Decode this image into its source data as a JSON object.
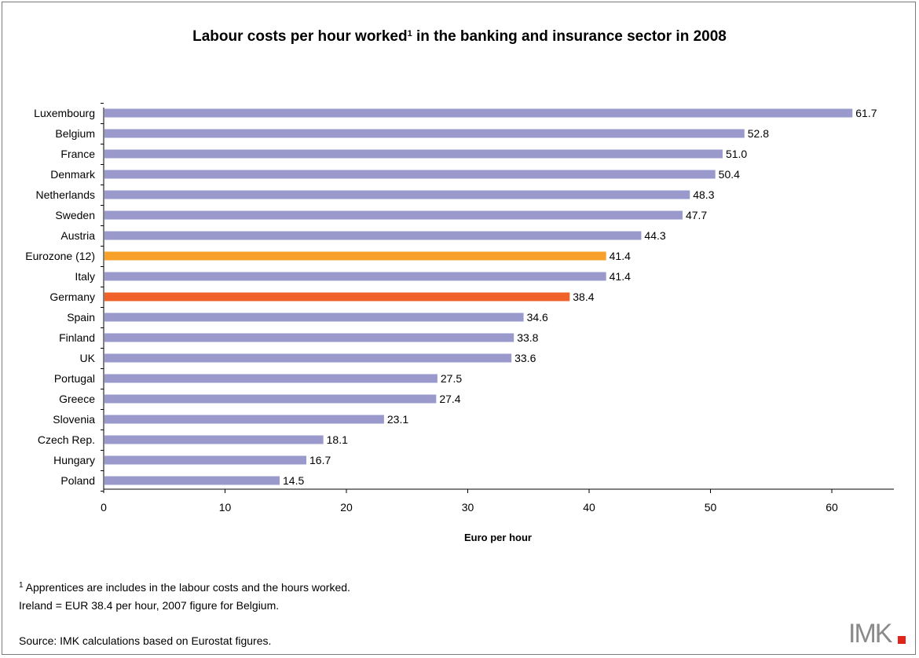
{
  "chart_data": {
    "type": "bar",
    "orientation": "horizontal",
    "title": "Labour costs per hour worked",
    "title_sup": "1",
    "title_rest": " in the banking and insurance sector in 2008",
    "xlabel": "Euro per hour",
    "ylabel": "",
    "xlim": [
      0,
      65
    ],
    "x_ticks": [
      0,
      10,
      20,
      30,
      40,
      50,
      60
    ],
    "grid": false,
    "legend": "none",
    "categories": [
      "Luxembourg",
      "Belgium",
      "France",
      "Denmark",
      "Netherlands",
      "Sweden",
      "Austria",
      "Eurozone (12)",
      "Italy",
      "Germany",
      "Spain",
      "Finland",
      "UK",
      "Portugal",
      "Greece",
      "Slovenia",
      "Czech Rep.",
      "Hungary",
      "Poland"
    ],
    "values": [
      61.7,
      52.8,
      51.0,
      50.4,
      48.3,
      47.7,
      44.3,
      41.4,
      41.4,
      38.4,
      34.6,
      33.8,
      33.6,
      27.5,
      27.4,
      23.1,
      18.1,
      16.7,
      14.5
    ],
    "value_labels": [
      "61.7",
      "52.8",
      "51.0",
      "50.4",
      "48.3",
      "47.7",
      "44.3",
      "41.4",
      "41.4",
      "38.4",
      "34.6",
      "33.8",
      "33.6",
      "27.5",
      "27.4",
      "23.1",
      "18.1",
      "16.7",
      "14.5"
    ],
    "colors": {
      "default": "#9999cc",
      "highlights": {
        "Eurozone (12)": "#f7a12a",
        "Germany": "#f0622a"
      }
    }
  },
  "footnotes": {
    "note_sup": "1",
    "note_line1": " Apprentices are includes in the labour costs and the hours worked.",
    "note_line2": "Ireland = EUR 38.4 per hour, 2007 figure for Belgium.",
    "source": "Source: IMK calculations based on Eurostat figures."
  },
  "logo": {
    "text": "IMK",
    "colors": {
      "text": "#8a8a8a",
      "accent": "#e2231a"
    }
  }
}
